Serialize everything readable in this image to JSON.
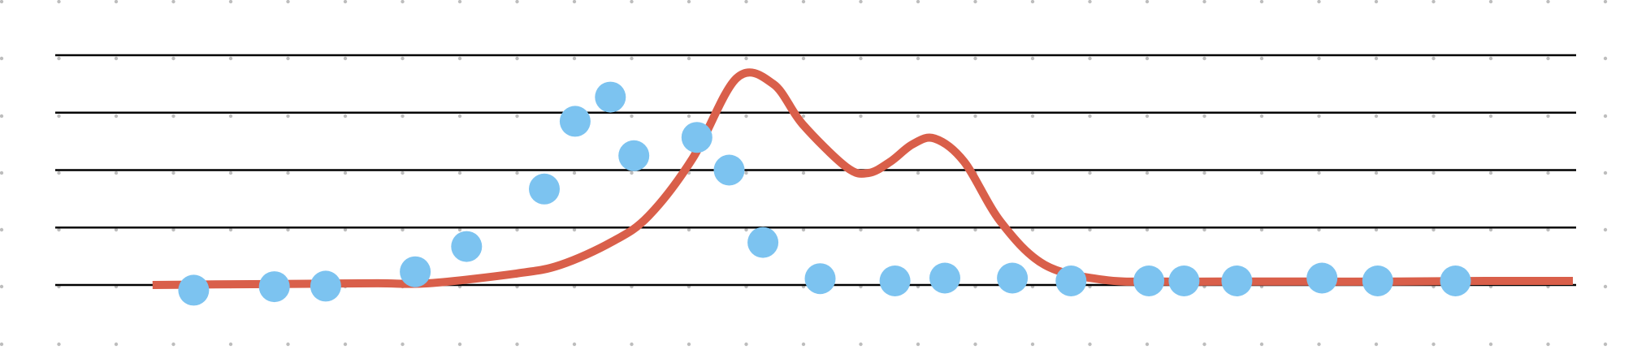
{
  "chart_data": {
    "type": "line",
    "title": "",
    "xlabel": "",
    "ylabel": "",
    "grid": true,
    "ylim": [
      0,
      4
    ],
    "xlim": [
      0,
      1
    ],
    "colors": {
      "line": "#d95f4a",
      "points": "#7cc3f0",
      "grid": "#000000",
      "dots": "#bdbdbd"
    },
    "series": [
      {
        "type": "curve",
        "points": [
          [
            0.032,
            0.0
          ],
          [
            0.075,
            0.01
          ],
          [
            0.13,
            0.02
          ],
          [
            0.185,
            0.03
          ],
          [
            0.22,
            0.03
          ],
          [
            0.28,
            0.2
          ],
          [
            0.31,
            0.35
          ],
          [
            0.345,
            0.75
          ],
          [
            0.37,
            1.2
          ],
          [
            0.4,
            2.2
          ],
          [
            0.43,
            3.6
          ],
          [
            0.455,
            3.5
          ],
          [
            0.475,
            2.8
          ],
          [
            0.505,
            2.05
          ],
          [
            0.52,
            1.95
          ],
          [
            0.535,
            2.15
          ],
          [
            0.55,
            2.45
          ],
          [
            0.565,
            2.55
          ],
          [
            0.585,
            2.15
          ],
          [
            0.61,
            1.1
          ],
          [
            0.64,
            0.35
          ],
          [
            0.68,
            0.09
          ],
          [
            0.72,
            0.06
          ],
          [
            0.76,
            0.06
          ],
          [
            0.82,
            0.06
          ],
          [
            0.88,
            0.06
          ],
          [
            0.94,
            0.07
          ],
          [
            1.0,
            0.07
          ]
        ]
      },
      {
        "type": "scatter",
        "points": [
          [
            0.06,
            -0.09
          ],
          [
            0.115,
            -0.03
          ],
          [
            0.15,
            -0.02
          ],
          [
            0.211,
            0.23
          ],
          [
            0.246,
            0.67
          ],
          [
            0.299,
            1.67
          ],
          [
            0.32,
            2.85
          ],
          [
            0.344,
            3.27
          ],
          [
            0.36,
            2.25
          ],
          [
            0.403,
            2.57
          ],
          [
            0.425,
            2.0
          ],
          [
            0.448,
            0.74
          ],
          [
            0.487,
            0.11
          ],
          [
            0.538,
            0.07
          ],
          [
            0.572,
            0.12
          ],
          [
            0.618,
            0.12
          ],
          [
            0.658,
            0.07
          ],
          [
            0.711,
            0.07
          ],
          [
            0.735,
            0.07
          ],
          [
            0.771,
            0.07
          ],
          [
            0.829,
            0.12
          ],
          [
            0.867,
            0.07
          ],
          [
            0.92,
            0.07
          ]
        ]
      }
    ]
  }
}
